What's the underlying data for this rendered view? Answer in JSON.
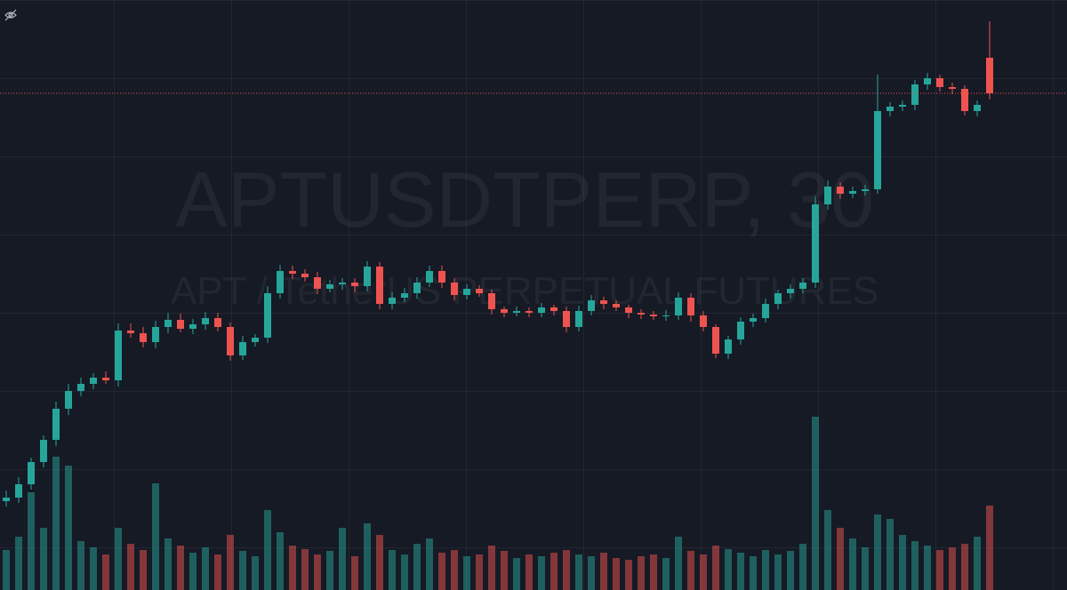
{
  "chart_data": {
    "type": "candlestick",
    "title": "APTUSDTPERP, 30",
    "subtitle": "APT / TetherUS PERPETUAL FUTURES",
    "ylim": [
      0,
      66.4
    ],
    "y2lim": [
      0,
      200
    ],
    "up_color": "#26a69a",
    "down_color": "#ef5350",
    "open": [
      10.0,
      10.4,
      11.9,
      14.4,
      16.9,
      20.4,
      22.4,
      23.2,
      23.9,
      23.6,
      29.2,
      28.9,
      27.9,
      29.6,
      30.4,
      29.4,
      29.9,
      30.6,
      29.6,
      26.4,
      27.9,
      28.4,
      33.4,
      35.9,
      35.6,
      35.2,
      33.9,
      34.4,
      34.6,
      34.2,
      36.4,
      32.2,
      32.9,
      33.4,
      34.6,
      35.9,
      34.6,
      33.2,
      33.9,
      33.4,
      31.6,
      31.2,
      31.4,
      31.2,
      31.8,
      31.4,
      29.6,
      31.4,
      32.6,
      32.2,
      31.8,
      31.2,
      31.0,
      30.8,
      30.9,
      32.9,
      30.9,
      29.6,
      26.6,
      28.2,
      30.2,
      30.6,
      32.2,
      33.4,
      33.9,
      34.6,
      43.4,
      45.4,
      44.6,
      44.9,
      45.1,
      53.9,
      54.4,
      54.6,
      56.9,
      57.6,
      56.6,
      56.4,
      53.9,
      59.9
    ],
    "high": [
      11.2,
      12.7,
      14.9,
      17.4,
      21.2,
      23.2,
      23.9,
      24.4,
      24.6,
      30.0,
      30.0,
      29.6,
      30.3,
      31.2,
      31.1,
      30.5,
      31.3,
      31.2,
      30.1,
      28.6,
      28.8,
      34.2,
      36.6,
      36.5,
      36.1,
      35.8,
      34.9,
      35.1,
      35.1,
      37.0,
      36.9,
      33.5,
      34.0,
      35.2,
      36.5,
      36.5,
      35.1,
      34.4,
      34.3,
      33.8,
      31.9,
      31.9,
      31.8,
      32.3,
      32.1,
      31.9,
      32.0,
      33.2,
      33.0,
      32.6,
      32.1,
      31.6,
      31.4,
      31.5,
      33.5,
      33.4,
      31.4,
      29.9,
      28.6,
      30.7,
      31.1,
      32.8,
      33.8,
      34.4,
      35.1,
      44.3,
      46.1,
      45.9,
      45.4,
      45.6,
      58.0,
      54.9,
      55.1,
      57.4,
      58.2,
      58.0,
      57.1,
      56.8,
      55.1,
      64.0
    ],
    "low": [
      9.4,
      9.8,
      11.3,
      13.8,
      16.2,
      19.7,
      21.8,
      22.6,
      23.2,
      22.9,
      28.4,
      27.3,
      27.2,
      28.9,
      29.0,
      28.8,
      29.3,
      29.1,
      25.8,
      25.9,
      27.4,
      27.8,
      32.8,
      35.0,
      34.7,
      33.3,
      33.5,
      33.8,
      33.5,
      33.6,
      31.6,
      31.6,
      32.4,
      32.8,
      34.1,
      34.0,
      32.6,
      32.7,
      33.0,
      31.0,
      30.7,
      30.8,
      30.7,
      30.7,
      30.9,
      29.0,
      29.1,
      30.9,
      31.6,
      31.4,
      30.6,
      30.5,
      30.4,
      30.3,
      30.4,
      30.2,
      29.1,
      26.1,
      26.0,
      27.6,
      29.6,
      30.1,
      31.6,
      32.8,
      33.4,
      34.0,
      42.8,
      44.0,
      44.1,
      44.4,
      44.6,
      53.3,
      53.9,
      54.0,
      56.3,
      56.1,
      55.8,
      53.4,
      53.3,
      55.2
    ],
    "close": [
      10.4,
      11.9,
      14.4,
      16.9,
      20.4,
      22.4,
      23.2,
      23.9,
      23.6,
      29.2,
      28.9,
      27.9,
      29.6,
      30.4,
      29.4,
      29.9,
      30.6,
      29.6,
      26.4,
      27.9,
      28.4,
      33.4,
      35.9,
      35.6,
      35.2,
      33.9,
      34.4,
      34.6,
      34.2,
      36.4,
      32.2,
      32.9,
      33.4,
      34.6,
      35.9,
      34.6,
      33.2,
      33.9,
      33.4,
      31.6,
      31.2,
      31.4,
      31.2,
      31.8,
      31.4,
      29.6,
      31.4,
      32.6,
      32.2,
      31.8,
      31.2,
      31.0,
      30.8,
      30.9,
      32.9,
      30.9,
      29.6,
      26.6,
      28.2,
      30.2,
      30.6,
      32.2,
      33.4,
      33.9,
      34.6,
      43.4,
      45.4,
      44.6,
      44.9,
      45.1,
      53.9,
      54.4,
      54.6,
      56.9,
      57.6,
      56.6,
      56.4,
      53.9,
      54.6,
      55.9
    ],
    "volume": [
      45,
      60,
      110,
      70,
      150,
      140,
      55,
      48,
      40,
      70,
      52,
      45,
      120,
      58,
      50,
      42,
      48,
      40,
      62,
      44,
      38,
      90,
      65,
      50,
      46,
      40,
      44,
      70,
      38,
      75,
      62,
      45,
      40,
      52,
      58,
      42,
      45,
      38,
      40,
      50,
      44,
      36,
      40,
      38,
      42,
      45,
      40,
      38,
      42,
      36,
      34,
      38,
      40,
      36,
      60,
      44,
      40,
      50,
      46,
      42,
      38,
      45,
      40,
      44,
      52,
      195,
      90,
      70,
      58,
      48,
      85,
      80,
      62,
      55,
      50,
      45,
      48,
      52,
      60,
      95
    ]
  }
}
